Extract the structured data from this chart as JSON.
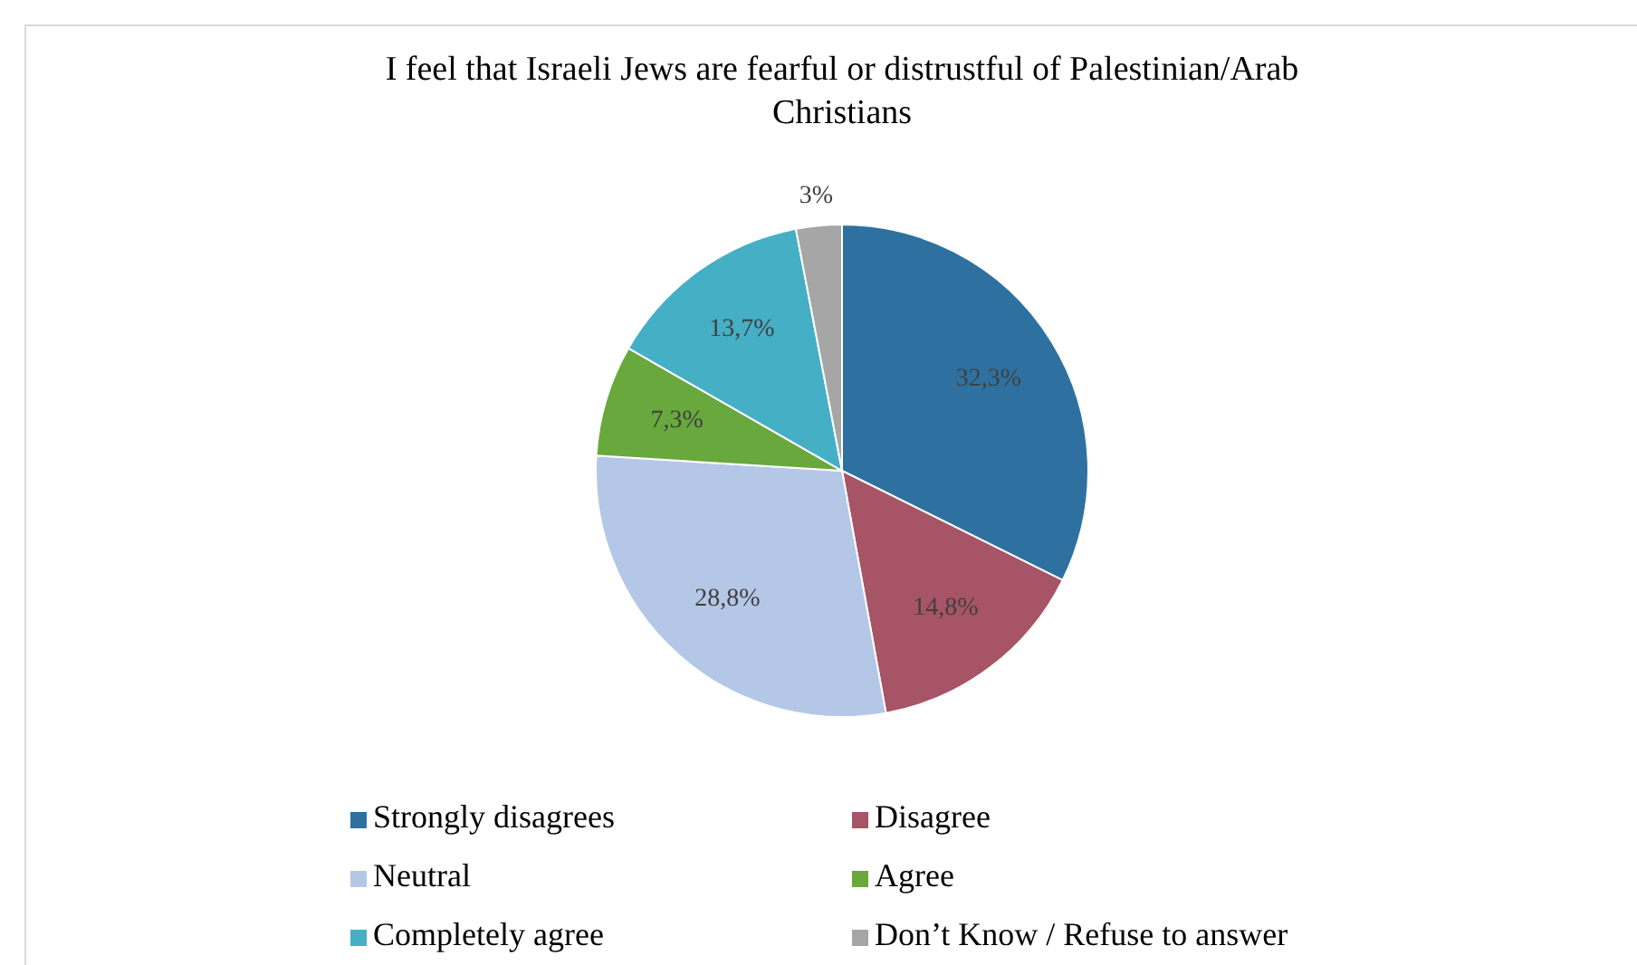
{
  "chart_data": {
    "type": "pie",
    "title": "I feel that Israeli Jews are fearful or distrustful of Palestinian/Arab Christians",
    "categories": [
      "Strongly disagrees",
      "Disagree",
      "Neutral",
      "Agree",
      "Completely agree",
      "Don’t Know / Refuse to answer"
    ],
    "values": [
      32.3,
      14.8,
      28.8,
      7.3,
      13.7,
      3
    ],
    "value_labels": [
      "32,3%",
      "14,8%",
      "28,8%",
      "7,3%",
      "13,7%",
      "3%"
    ],
    "colors": [
      "#2e71a0",
      "#a65466",
      "#b4c7e7",
      "#68a83c",
      "#45afc6",
      "#a6a6a6"
    ],
    "legend": "bottom"
  }
}
